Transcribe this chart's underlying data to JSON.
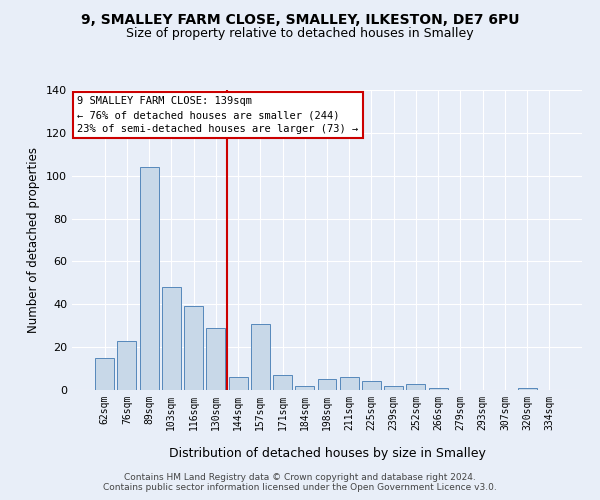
{
  "title1": "9, SMALLEY FARM CLOSE, SMALLEY, ILKESTON, DE7 6PU",
  "title2": "Size of property relative to detached houses in Smalley",
  "xlabel": "Distribution of detached houses by size in Smalley",
  "ylabel": "Number of detached properties",
  "categories": [
    "62sqm",
    "76sqm",
    "89sqm",
    "103sqm",
    "116sqm",
    "130sqm",
    "144sqm",
    "157sqm",
    "171sqm",
    "184sqm",
    "198sqm",
    "211sqm",
    "225sqm",
    "239sqm",
    "252sqm",
    "266sqm",
    "279sqm",
    "293sqm",
    "307sqm",
    "320sqm",
    "334sqm"
  ],
  "values": [
    15,
    23,
    104,
    48,
    39,
    29,
    6,
    31,
    7,
    2,
    5,
    6,
    4,
    2,
    3,
    1,
    0,
    0,
    0,
    1,
    0
  ],
  "bar_color": "#c8d8e8",
  "bar_edge_color": "#5588bb",
  "background_color": "#e8eef8",
  "grid_color": "#ffffff",
  "red_line_index": 6,
  "annotation_text": "9 SMALLEY FARM CLOSE: 139sqm\n← 76% of detached houses are smaller (244)\n23% of semi-detached houses are larger (73) →",
  "annotation_box_color": "#ffffff",
  "annotation_box_edge": "#cc0000",
  "red_line_color": "#cc0000",
  "footer_text": "Contains HM Land Registry data © Crown copyright and database right 2024.\nContains public sector information licensed under the Open Government Licence v3.0.",
  "ylim": [
    0,
    140
  ],
  "yticks": [
    0,
    20,
    40,
    60,
    80,
    100,
    120,
    140
  ]
}
